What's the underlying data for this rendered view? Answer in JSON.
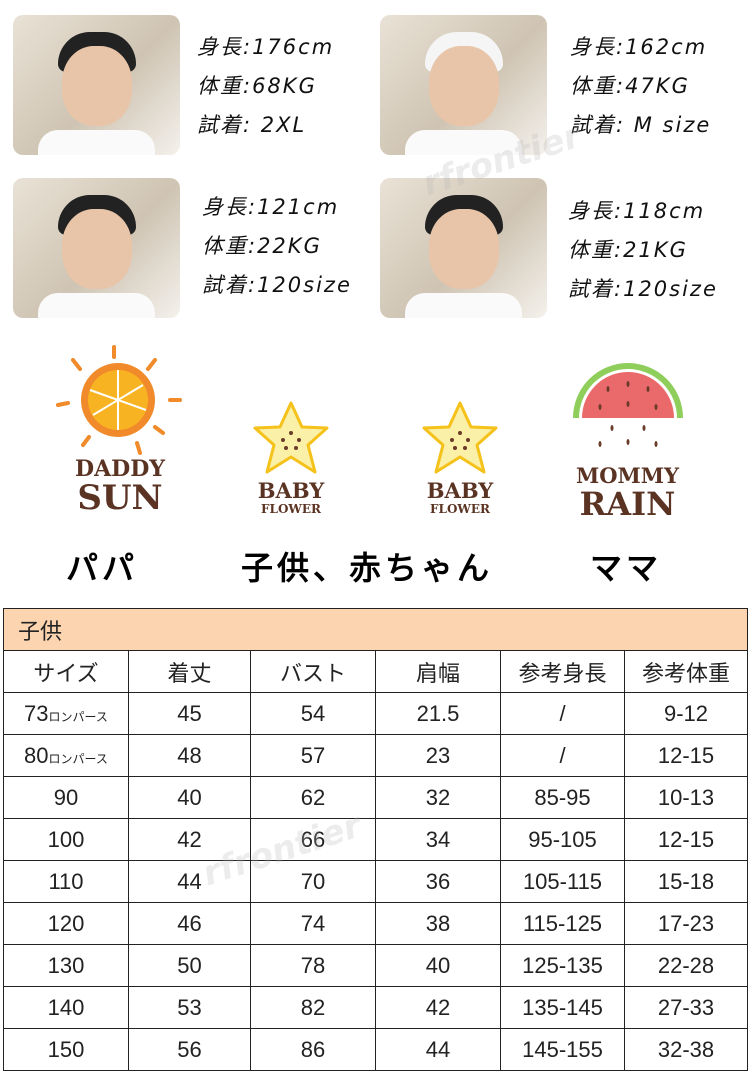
{
  "models": [
    {
      "height": "身長:176cm",
      "weight": "体重:68KG",
      "fit": "試着: 2XL"
    },
    {
      "height": "身長:162cm",
      "weight": "体重:47KG",
      "fit": "試着: M size"
    },
    {
      "height": "身長:121cm",
      "weight": "体重:22KG",
      "fit": "試着:120size"
    },
    {
      "height": "身長:118cm",
      "weight": "体重:21KG",
      "fit": "試着:120size"
    }
  ],
  "logos": [
    {
      "line1": "DADDY",
      "line2": "SUN"
    },
    {
      "line1": "BABY",
      "line2": "FLOWER"
    },
    {
      "line1": "BABY",
      "line2": "FLOWER"
    },
    {
      "line1": "MOMMY",
      "line2": "RAIN"
    }
  ],
  "captions": {
    "papa": "パパ",
    "kids": "子供、赤ちゃん",
    "mama": "ママ"
  },
  "watermark": "rfrontier",
  "colors": {
    "table_title_bg": "#fcd5b0",
    "logo_text": "#5a3323"
  },
  "table": {
    "title": "子供",
    "headers": [
      "サイズ",
      "着丈",
      "バスト",
      "肩幅",
      "参考身長",
      "参考体重"
    ],
    "rows": [
      {
        "size": "73",
        "suffix": "ロンパース",
        "cells": [
          "45",
          "54",
          "21.5",
          "/",
          "9-12"
        ]
      },
      {
        "size": "80",
        "suffix": "ロンパース",
        "cells": [
          "48",
          "57",
          "23",
          "/",
          "12-15"
        ]
      },
      {
        "size": "90",
        "suffix": "",
        "cells": [
          "40",
          "62",
          "32",
          "85-95",
          "10-13"
        ]
      },
      {
        "size": "100",
        "suffix": "",
        "cells": [
          "42",
          "66",
          "34",
          "95-105",
          "12-15"
        ]
      },
      {
        "size": "110",
        "suffix": "",
        "cells": [
          "44",
          "70",
          "36",
          "105-115",
          "15-18"
        ]
      },
      {
        "size": "120",
        "suffix": "",
        "cells": [
          "46",
          "74",
          "38",
          "115-125",
          "17-23"
        ]
      },
      {
        "size": "130",
        "suffix": "",
        "cells": [
          "50",
          "78",
          "40",
          "125-135",
          "22-28"
        ]
      },
      {
        "size": "140",
        "suffix": "",
        "cells": [
          "53",
          "82",
          "42",
          "135-145",
          "27-33"
        ]
      },
      {
        "size": "150",
        "suffix": "",
        "cells": [
          "56",
          "86",
          "44",
          "145-155",
          "32-38"
        ]
      }
    ]
  }
}
